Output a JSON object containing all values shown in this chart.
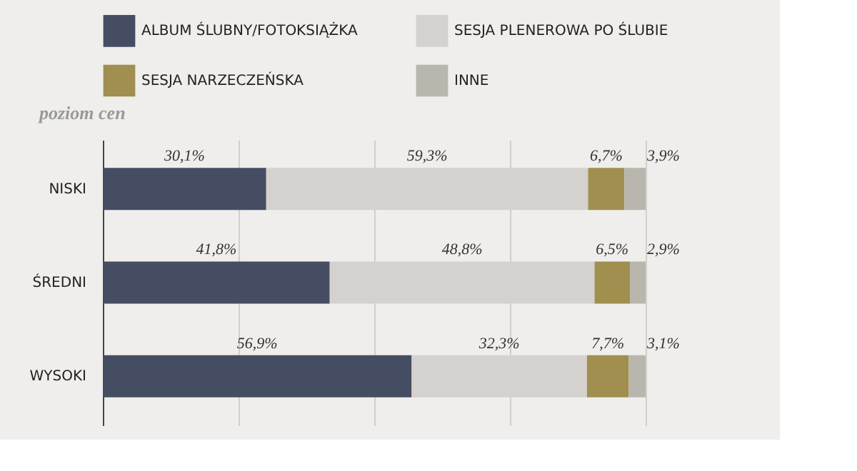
{
  "chart_data": {
    "type": "bar",
    "orientation": "horizontal",
    "stacked": true,
    "ylabel": "poziom cen",
    "categories": [
      "NISKI",
      "ŚREDNI",
      "WYSOKI"
    ],
    "series": [
      {
        "name": "ALBUM ŚLUBNY/FOTOKSIĄŻKA",
        "color": "#454d63",
        "values": [
          30.1,
          41.8,
          56.9
        ],
        "value_labels": [
          "30,1%",
          "41,8%",
          "56,9%"
        ]
      },
      {
        "name": "SESJA PLENEROWA PO ŚLUBIE",
        "color": "#d5d1cf",
        "values": [
          59.3,
          48.8,
          32.3
        ],
        "value_labels": [
          "59,3%",
          "48,8%",
          "32,3%"
        ]
      },
      {
        "name": "SESJA NARZECZEŃSKA",
        "color": "#a08f4e",
        "values": [
          6.7,
          6.5,
          7.7
        ],
        "value_labels": [
          "6,7%",
          "6,5%",
          "7,7%"
        ]
      },
      {
        "name": "INNE",
        "color": "#b9b6ad",
        "values": [
          3.9,
          2.9,
          3.1
        ],
        "value_labels": [
          "3,9%",
          "2,9%",
          "3,1%"
        ]
      }
    ],
    "xlim": [
      0,
      100
    ],
    "xticks": [
      {
        "value": 0,
        "label": null
      },
      {
        "value": 25,
        "label": null
      },
      {
        "value": 50,
        "label": null
      },
      {
        "value": 75,
        "label": null
      },
      {
        "value": 100,
        "label": null
      }
    ],
    "tick_labels": "y",
    "grid": "x",
    "legend": "top"
  }
}
